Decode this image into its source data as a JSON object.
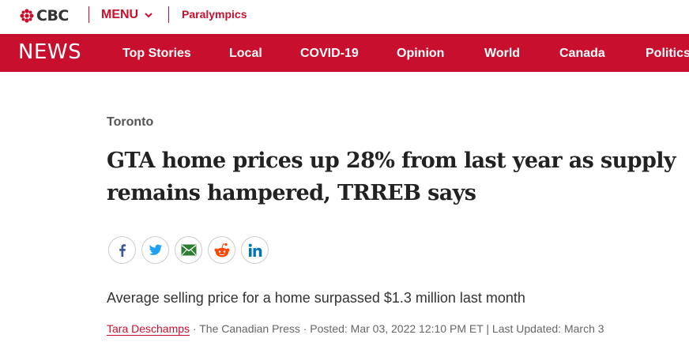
{
  "header": {
    "logo_text": "CBC",
    "menu_label": "MENU",
    "paralympics_link": "Paralympics"
  },
  "newsbar": {
    "logo_text": "NEWS",
    "items": [
      "Top Stories",
      "Local",
      "COVID-19",
      "Opinion",
      "World",
      "Canada",
      "Politics"
    ]
  },
  "article": {
    "section": "Toronto",
    "headline": "GTA home prices up 28% from last year as supply remains hampered, TRREB says",
    "deck": "Average selling price for a home surpassed $1.3 million last month",
    "author": "Tara Deschamps",
    "meta": " · The Canadian Press · Posted: Mar 03, 2022 12:10 PM ET | Last Updated: March 3"
  },
  "share": {
    "icons": [
      "facebook-icon",
      "twitter-icon",
      "email-icon",
      "reddit-icon",
      "linkedin-icon"
    ]
  },
  "colors": {
    "brand_red": "#c8102e",
    "facebook": "#3b5998",
    "twitter": "#1da1f2",
    "email": "#2e7d32",
    "reddit": "#ff4500",
    "linkedin": "#0077b5"
  }
}
